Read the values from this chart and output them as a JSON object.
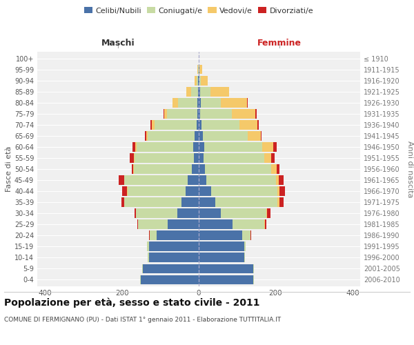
{
  "age_groups": [
    "0-4",
    "5-9",
    "10-14",
    "15-19",
    "20-24",
    "25-29",
    "30-34",
    "35-39",
    "40-44",
    "45-49",
    "50-54",
    "55-59",
    "60-64",
    "65-69",
    "70-74",
    "75-79",
    "80-84",
    "85-89",
    "90-94",
    "95-99",
    "100+"
  ],
  "birth_years": [
    "2006-2010",
    "2001-2005",
    "1996-2000",
    "1991-1995",
    "1986-1990",
    "1981-1985",
    "1976-1980",
    "1971-1975",
    "1966-1970",
    "1961-1965",
    "1956-1960",
    "1951-1955",
    "1946-1950",
    "1941-1945",
    "1936-1940",
    "1931-1935",
    "1926-1930",
    "1921-1925",
    "1916-1920",
    "1911-1915",
    "≤ 1910"
  ],
  "male_celibe": [
    150,
    145,
    130,
    130,
    110,
    80,
    55,
    45,
    35,
    28,
    18,
    12,
    14,
    10,
    6,
    4,
    3,
    2,
    1,
    0,
    0
  ],
  "male_coniugato": [
    2,
    2,
    3,
    4,
    18,
    78,
    108,
    148,
    150,
    165,
    150,
    155,
    148,
    122,
    108,
    78,
    50,
    18,
    5,
    2,
    0
  ],
  "male_vedovo": [
    0,
    0,
    0,
    0,
    0,
    0,
    0,
    0,
    1,
    1,
    2,
    2,
    3,
    5,
    8,
    8,
    16,
    12,
    4,
    1,
    0
  ],
  "male_divorziato": [
    0,
    0,
    0,
    0,
    1,
    2,
    4,
    8,
    14,
    14,
    5,
    10,
    8,
    3,
    3,
    2,
    0,
    0,
    0,
    0,
    0
  ],
  "fem_nubile": [
    142,
    142,
    118,
    118,
    113,
    88,
    58,
    43,
    33,
    19,
    17,
    12,
    14,
    10,
    7,
    4,
    5,
    3,
    2,
    1,
    0
  ],
  "fem_coniugata": [
    2,
    2,
    2,
    4,
    22,
    82,
    118,
    162,
    172,
    182,
    172,
    158,
    152,
    118,
    98,
    82,
    52,
    28,
    4,
    1,
    0
  ],
  "fem_vedova": [
    0,
    0,
    0,
    0,
    0,
    2,
    2,
    5,
    5,
    7,
    13,
    18,
    28,
    33,
    48,
    62,
    68,
    48,
    18,
    7,
    0
  ],
  "fem_divorziata": [
    0,
    0,
    0,
    0,
    1,
    3,
    8,
    10,
    15,
    12,
    8,
    10,
    8,
    3,
    3,
    2,
    2,
    0,
    0,
    0,
    0
  ],
  "colors": {
    "celibe": "#4a72a8",
    "coniugato": "#c8dba4",
    "vedovo": "#f5c96a",
    "divorziato": "#cc2222"
  },
  "xlim": 420,
  "xticks": [
    -400,
    -200,
    0,
    200,
    400
  ],
  "title": "Popolazione per età, sesso e stato civile - 2011",
  "subtitle": "COMUNE DI FERMIGNANO (PU) - Dati ISTAT 1° gennaio 2011 - Elaborazione TUTTITALIA.IT",
  "ylabel_left": "Fasce di età",
  "ylabel_right": "Anni di nascita",
  "label_maschi": "Maschi",
  "label_femmine": "Femmine",
  "legend_labels": [
    "Celibi/Nubili",
    "Coniugati/e",
    "Vedovi/e",
    "Divorziati/e"
  ],
  "plot_bg": "#f0f0f0",
  "fig_bg": "#ffffff",
  "grid_color": "#ffffff",
  "bar_height": 0.85
}
